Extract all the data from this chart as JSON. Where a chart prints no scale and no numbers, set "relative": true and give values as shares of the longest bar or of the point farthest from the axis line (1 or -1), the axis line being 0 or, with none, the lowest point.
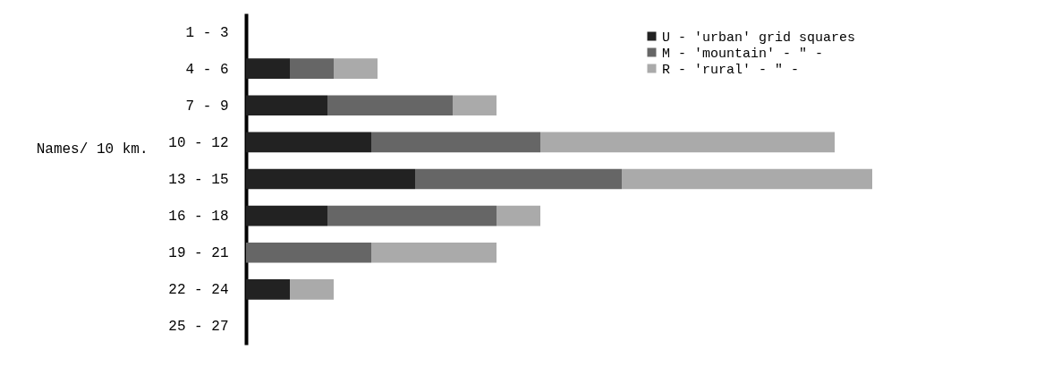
{
  "chart_data": {
    "type": "bar",
    "orientation": "horizontal",
    "stacked": true,
    "relative": true,
    "ylabel": "Names/ 10 km.",
    "categories": [
      "1 - 3",
      "4 - 6",
      "7 - 9",
      "10 - 12",
      "13 - 15",
      "16 - 18",
      "19 - 21",
      "22 - 24",
      "25 - 27"
    ],
    "series": [
      {
        "name": "U - 'urban' grid squares",
        "color": "#222222",
        "values": [
          0,
          0.07,
          0.13,
          0.2,
          0.27,
          0.13,
          0,
          0.07,
          0
        ]
      },
      {
        "name": "M - 'mountain' - \" -",
        "color": "#666666",
        "values": [
          0,
          0.07,
          0.2,
          0.27,
          0.33,
          0.27,
          0.2,
          0,
          0
        ]
      },
      {
        "name": "R - 'rural'   - \" -",
        "color": "#aaaaaa",
        "values": [
          0,
          0.07,
          0.07,
          0.47,
          0.4,
          0.07,
          0.2,
          0.07,
          0
        ]
      }
    ],
    "legend": "top right"
  }
}
